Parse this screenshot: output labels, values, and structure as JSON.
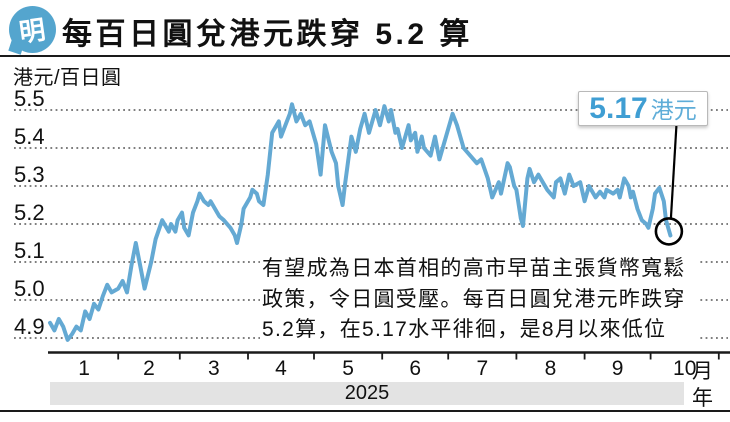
{
  "header": {
    "logo_char": "明",
    "title": "每百日圓兌港元跌穿 5.2 算"
  },
  "chart_data": {
    "type": "line",
    "title": "每百日圓兌港元跌穿 5.2 算",
    "grid": "horizontal dotted",
    "legend_position": "none",
    "y_axis": {
      "unit_label": "港元/百日圓",
      "tick_labels": [
        "5.5",
        "5.4",
        "5.3",
        "5.2",
        "5.1",
        "5.0",
        "4.9"
      ],
      "range": [
        4.85,
        5.55
      ]
    },
    "x_axis": {
      "tick_labels": [
        "1",
        "2",
        "3",
        "4",
        "5",
        "6",
        "7",
        "8",
        "9",
        "10"
      ],
      "unit_label": "月",
      "year_label": "2025",
      "year_unit_label": "年"
    },
    "series": [
      {
        "name": "港元/百日圓",
        "color": "#64a9d3",
        "x_unit": "day_of_year_2025",
        "points": [
          [
            0,
            4.94
          ],
          [
            2,
            4.92
          ],
          [
            4,
            4.95
          ],
          [
            6,
            4.93
          ],
          [
            8,
            4.895
          ],
          [
            10,
            4.91
          ],
          [
            12,
            4.93
          ],
          [
            14,
            4.92
          ],
          [
            16,
            4.97
          ],
          [
            18,
            4.95
          ],
          [
            20,
            4.99
          ],
          [
            22,
            4.975
          ],
          [
            24,
            5.01
          ],
          [
            26,
            5.04
          ],
          [
            28,
            5.02
          ],
          [
            31,
            5.03
          ],
          [
            33,
            5.05
          ],
          [
            35,
            5.02
          ],
          [
            37,
            5.09
          ],
          [
            39,
            5.15
          ],
          [
            41,
            5.09
          ],
          [
            43,
            5.03
          ],
          [
            46,
            5.1
          ],
          [
            48,
            5.16
          ],
          [
            51,
            5.21
          ],
          [
            54,
            5.18
          ],
          [
            55,
            5.2
          ],
          [
            57,
            5.18
          ],
          [
            58,
            5.21
          ],
          [
            60,
            5.23
          ],
          [
            61,
            5.19
          ],
          [
            63,
            5.17
          ],
          [
            65,
            5.23
          ],
          [
            67,
            5.26
          ],
          [
            68,
            5.28
          ],
          [
            70,
            5.26
          ],
          [
            72,
            5.25
          ],
          [
            73,
            5.26
          ],
          [
            76,
            5.23
          ],
          [
            77,
            5.22
          ],
          [
            79,
            5.21
          ],
          [
            82,
            5.19
          ],
          [
            84,
            5.17
          ],
          [
            85,
            5.15
          ],
          [
            87,
            5.2
          ],
          [
            88,
            5.24
          ],
          [
            91,
            5.27
          ],
          [
            92,
            5.29
          ],
          [
            94,
            5.28
          ],
          [
            95,
            5.26
          ],
          [
            97,
            5.25
          ],
          [
            99,
            5.33
          ],
          [
            101,
            5.44
          ],
          [
            103,
            5.46
          ],
          [
            104,
            5.47
          ],
          [
            105,
            5.43
          ],
          [
            107,
            5.46
          ],
          [
            109,
            5.49
          ],
          [
            110,
            5.515
          ],
          [
            112,
            5.47
          ],
          [
            114,
            5.49
          ],
          [
            116,
            5.46
          ],
          [
            118,
            5.47
          ],
          [
            121,
            5.41
          ],
          [
            122,
            5.37
          ],
          [
            123,
            5.33
          ],
          [
            125,
            5.46
          ],
          [
            128,
            5.39
          ],
          [
            130,
            5.36
          ],
          [
            131,
            5.3
          ],
          [
            133,
            5.25
          ],
          [
            134,
            5.3
          ],
          [
            137,
            5.43
          ],
          [
            139,
            5.39
          ],
          [
            141,
            5.45
          ],
          [
            143,
            5.49
          ],
          [
            145,
            5.44
          ],
          [
            148,
            5.5
          ],
          [
            150,
            5.46
          ],
          [
            152,
            5.51
          ],
          [
            154,
            5.47
          ],
          [
            155,
            5.5
          ],
          [
            157,
            5.44
          ],
          [
            158,
            5.45
          ],
          [
            160,
            5.4
          ],
          [
            163,
            5.46
          ],
          [
            164,
            5.42
          ],
          [
            166,
            5.44
          ],
          [
            167,
            5.39
          ],
          [
            169,
            5.43
          ],
          [
            170,
            5.4
          ],
          [
            173,
            5.38
          ],
          [
            175,
            5.43
          ],
          [
            177,
            5.37
          ],
          [
            180,
            5.43
          ],
          [
            183,
            5.49
          ],
          [
            185,
            5.46
          ],
          [
            188,
            5.4
          ],
          [
            191,
            5.38
          ],
          [
            194,
            5.36
          ],
          [
            196,
            5.37
          ],
          [
            199,
            5.32
          ],
          [
            201,
            5.27
          ],
          [
            204,
            5.31
          ],
          [
            205,
            5.28
          ],
          [
            208,
            5.36
          ],
          [
            209,
            5.35
          ],
          [
            211,
            5.3
          ],
          [
            212,
            5.29
          ],
          [
            214,
            5.215
          ],
          [
            215,
            5.195
          ],
          [
            217,
            5.32
          ],
          [
            218,
            5.345
          ],
          [
            220,
            5.31
          ],
          [
            222,
            5.33
          ],
          [
            224,
            5.31
          ],
          [
            226,
            5.29
          ],
          [
            229,
            5.27
          ],
          [
            230,
            5.31
          ],
          [
            232,
            5.32
          ],
          [
            234,
            5.28
          ],
          [
            236,
            5.33
          ],
          [
            238,
            5.3
          ],
          [
            241,
            5.31
          ],
          [
            243,
            5.26
          ],
          [
            245,
            5.3
          ],
          [
            248,
            5.27
          ],
          [
            250,
            5.285
          ],
          [
            252,
            5.27
          ],
          [
            253,
            5.29
          ],
          [
            256,
            5.28
          ],
          [
            258,
            5.29
          ],
          [
            259,
            5.27
          ],
          [
            261,
            5.32
          ],
          [
            263,
            5.3
          ],
          [
            264,
            5.27
          ],
          [
            265,
            5.285
          ],
          [
            267,
            5.24
          ],
          [
            269,
            5.21
          ],
          [
            271,
            5.2
          ],
          [
            272,
            5.19
          ],
          [
            274,
            5.24
          ],
          [
            275,
            5.28
          ],
          [
            277,
            5.295
          ],
          [
            279,
            5.26
          ],
          [
            280,
            5.21
          ],
          [
            282,
            5.17
          ]
        ]
      }
    ],
    "end_callout": {
      "value": "5.17",
      "unit": "港元",
      "numeric": 5.17
    }
  },
  "annotation": {
    "lines": [
      "有望成為日本首相的高市早苗主張貨幣寬鬆",
      "政策，令日圓受壓。每百日圓兌港元昨跌穿",
      "5.2算，在5.17水平徘徊，是8月以來低位"
    ]
  }
}
